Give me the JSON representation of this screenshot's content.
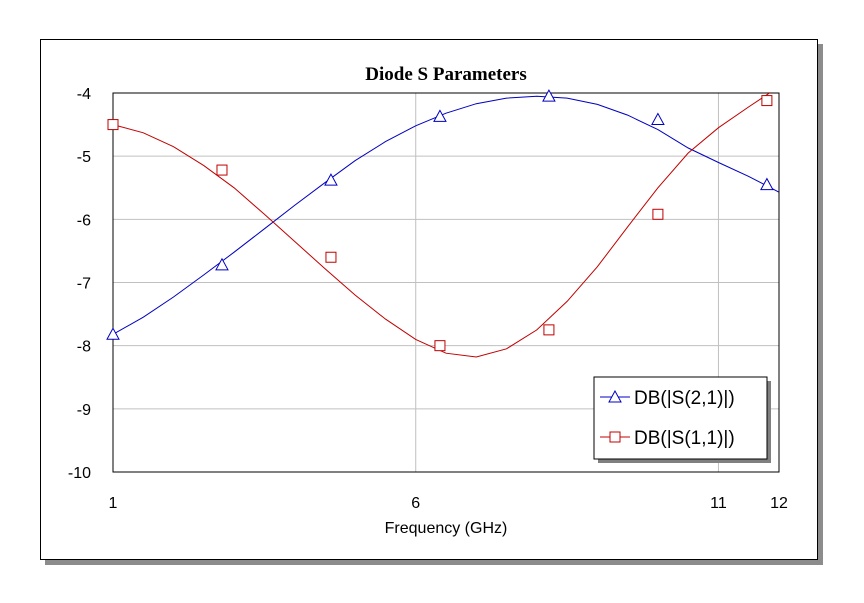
{
  "chart_data": {
    "type": "line",
    "title": "Diode S Parameters",
    "xlabel": "Frequency (GHz)",
    "ylabel": "",
    "xlim": [
      1,
      12
    ],
    "ylim": [
      -10,
      -4
    ],
    "x_ticks": [
      "1",
      "6",
      "11",
      "12"
    ],
    "x_tick_values": [
      1,
      6,
      11,
      12
    ],
    "y_ticks": [
      "-4",
      "-5",
      "-6",
      "-7",
      "-8",
      "-9",
      "-10"
    ],
    "y_tick_values": [
      -4,
      -5,
      -6,
      -7,
      -8,
      -9,
      -10
    ],
    "grid": true,
    "legend_position": "bottom-right",
    "series": [
      {
        "name": "DB(|S(2,1)|)",
        "color": "#0000c0",
        "marker": "triangle",
        "x": [
          1,
          1.5,
          2,
          2.5,
          3,
          3.5,
          4,
          4.5,
          5,
          5.5,
          6,
          6.5,
          7,
          7.5,
          8,
          8.5,
          9,
          9.5,
          10,
          10.5,
          11,
          11.5,
          12
        ],
        "values": [
          -7.82,
          -7.55,
          -7.23,
          -6.88,
          -6.52,
          -6.15,
          -5.78,
          -5.42,
          -5.07,
          -4.77,
          -4.52,
          -4.32,
          -4.17,
          -4.08,
          -4.05,
          -4.08,
          -4.18,
          -4.35,
          -4.58,
          -4.87,
          -5.1,
          -5.32,
          -5.57
        ],
        "markers_x": [
          1,
          2.8,
          4.6,
          6.4,
          8.2,
          10,
          11.8
        ],
        "markers_y": [
          -7.82,
          -6.72,
          -5.38,
          -4.37,
          -4.05,
          -4.42,
          -5.45
        ]
      },
      {
        "name": "DB(|S(1,1)|)",
        "color": "#c00000",
        "marker": "square",
        "x": [
          1,
          1.5,
          2,
          2.5,
          3,
          3.5,
          4,
          4.5,
          5,
          5.5,
          6,
          6.5,
          7,
          7.5,
          8,
          8.5,
          9,
          9.5,
          10,
          10.5,
          11,
          11.5,
          12
        ],
        "values": [
          -4.5,
          -4.63,
          -4.85,
          -5.15,
          -5.5,
          -5.92,
          -6.35,
          -6.78,
          -7.2,
          -7.58,
          -7.9,
          -8.12,
          -8.18,
          -8.05,
          -7.75,
          -7.3,
          -6.75,
          -6.12,
          -5.5,
          -4.95,
          -4.55,
          -4.22,
          -3.9
        ],
        "markers_x": [
          1,
          2.8,
          4.6,
          6.4,
          8.2,
          10,
          11.8
        ],
        "markers_y": [
          -4.5,
          -5.22,
          -6.6,
          -8.0,
          -7.75,
          -5.92,
          -4.12
        ]
      }
    ]
  }
}
